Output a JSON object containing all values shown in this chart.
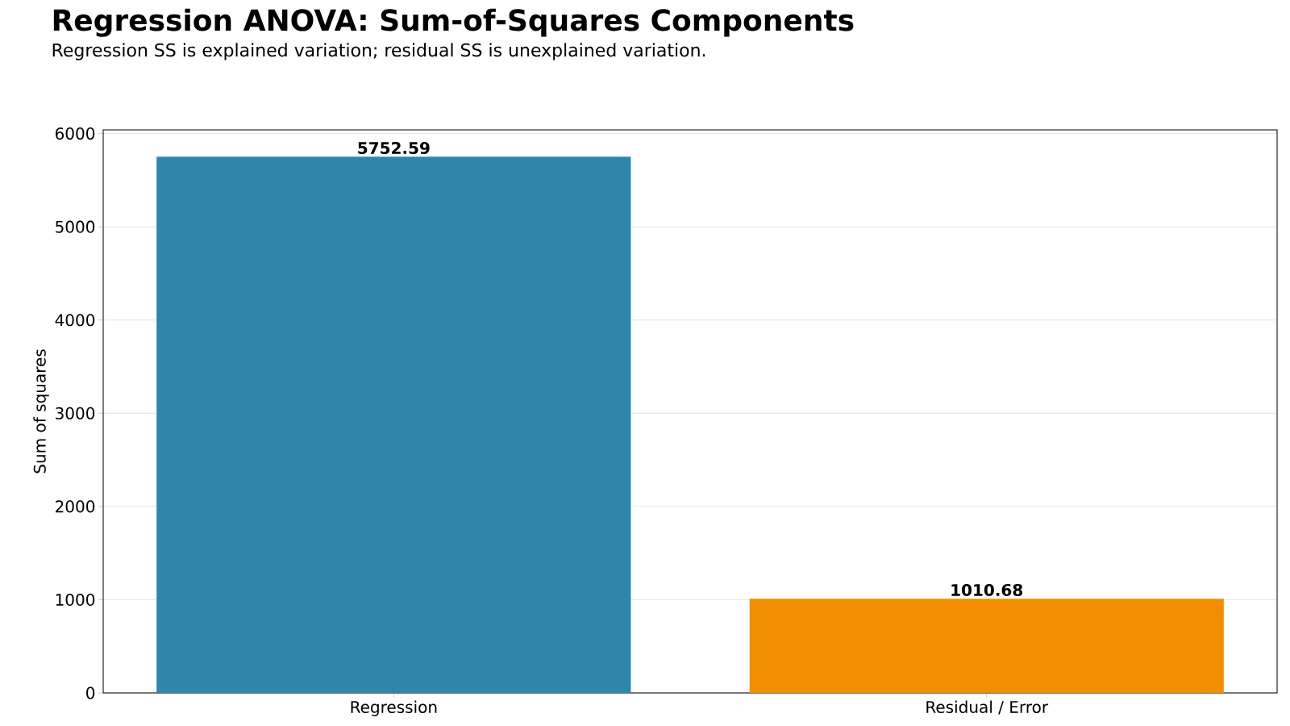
{
  "chart_data": {
    "type": "bar",
    "title": "Regression ANOVA: Sum-of-Squares Components",
    "subtitle": "Regression SS is explained variation; residual SS is unexplained variation.",
    "ylabel": "Sum of squares",
    "categories": [
      "Regression",
      "Residual / Error"
    ],
    "values": [
      5752.59,
      1010.68
    ],
    "colors": [
      "#2e86ab",
      "#f18f01"
    ],
    "ylim": [
      0,
      6040
    ],
    "yticks": [
      0,
      1000,
      2000,
      3000,
      4000,
      5000,
      6000
    ],
    "grid": "y",
    "data_labels": true
  }
}
